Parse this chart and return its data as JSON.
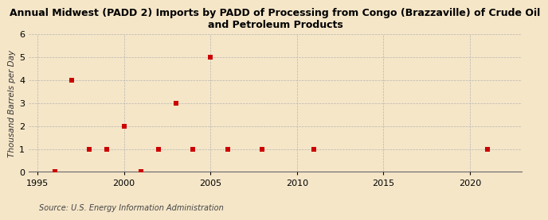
{
  "title": "Annual Midwest (PADD 2) Imports by PADD of Processing from Congo (Brazzaville) of Crude Oil\nand Petroleum Products",
  "ylabel": "Thousand Barrels per Day",
  "source": "Source: U.S. Energy Information Administration",
  "background_color": "#f5e6c8",
  "data_points": [
    [
      1996,
      0
    ],
    [
      1997,
      4
    ],
    [
      1998,
      1
    ],
    [
      1999,
      1
    ],
    [
      2000,
      2
    ],
    [
      2001,
      0
    ],
    [
      2002,
      1
    ],
    [
      2003,
      3
    ],
    [
      2004,
      1
    ],
    [
      2005,
      5
    ],
    [
      2006,
      1
    ],
    [
      2008,
      1
    ],
    [
      2011,
      1
    ],
    [
      2021,
      1
    ]
  ],
  "marker_color": "#cc0000",
  "marker_size": 4,
  "xlim": [
    1994.5,
    2023
  ],
  "ylim": [
    0,
    6
  ],
  "xticks": [
    1995,
    2000,
    2005,
    2010,
    2015,
    2020
  ],
  "yticks": [
    0,
    1,
    2,
    3,
    4,
    5,
    6
  ],
  "grid_color": "#b0b0b0",
  "title_fontsize": 9,
  "axis_label_fontsize": 7.5,
  "tick_fontsize": 8,
  "source_fontsize": 7
}
